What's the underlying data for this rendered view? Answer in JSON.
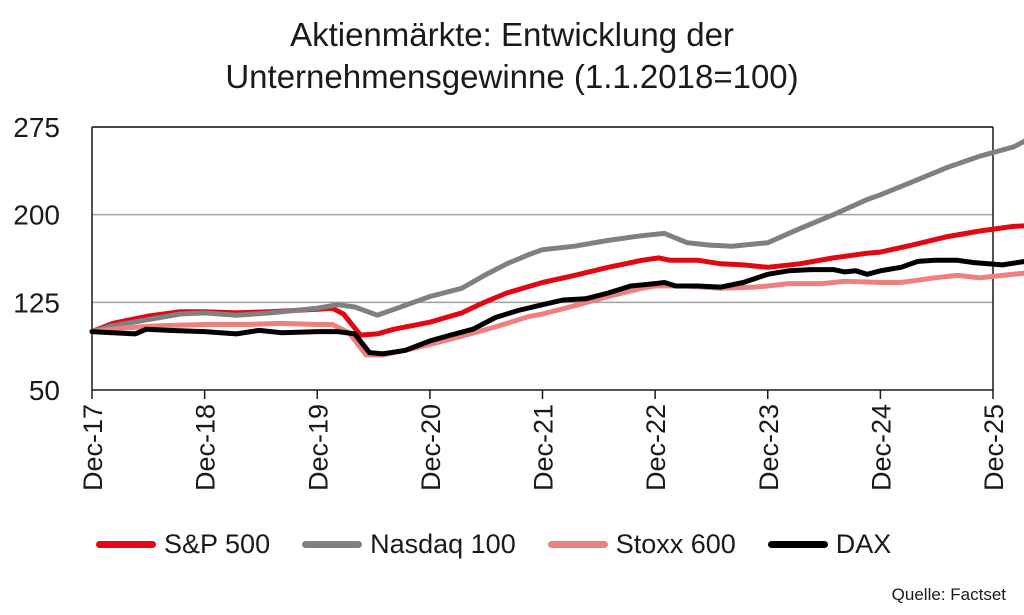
{
  "title_line1": "Aktienmärkte: Entwicklung der",
  "title_line2": "Unternehmensgewinne (1.1.2018=100)",
  "source": "Quelle: Factset",
  "chart_data": {
    "type": "line",
    "title": "Aktienmärkte: Entwicklung der Unternehmensgewinne (1.1.2018=100)",
    "xlabel": "",
    "ylabel": "",
    "ylim": [
      50,
      275
    ],
    "yticks": [
      50,
      125,
      200,
      275
    ],
    "xlim": [
      2017.917,
      2025.917
    ],
    "xticks": [
      {
        "x": 2017.917,
        "label": "Dec-17"
      },
      {
        "x": 2018.917,
        "label": "Dec-18"
      },
      {
        "x": 2019.917,
        "label": "Dec-19"
      },
      {
        "x": 2020.917,
        "label": "Dec-20"
      },
      {
        "x": 2021.917,
        "label": "Dec-21"
      },
      {
        "x": 2022.917,
        "label": "Dec-22"
      },
      {
        "x": 2023.917,
        "label": "Dec-23"
      },
      {
        "x": 2024.917,
        "label": "Dec-24"
      },
      {
        "x": 2025.917,
        "label": "Dec-25"
      }
    ],
    "grid": "horizontal",
    "legend_position": "bottom",
    "series": [
      {
        "name": "S&P 500",
        "color": "#e30613",
        "points": [
          [
            2017.917,
            100
          ],
          [
            2018.1,
            107
          ],
          [
            2018.4,
            113
          ],
          [
            2018.7,
            117
          ],
          [
            2018.917,
            117
          ],
          [
            2019.2,
            116
          ],
          [
            2019.5,
            117
          ],
          [
            2019.917,
            119
          ],
          [
            2020.05,
            120
          ],
          [
            2020.15,
            115
          ],
          [
            2020.3,
            97
          ],
          [
            2020.45,
            98
          ],
          [
            2020.6,
            102
          ],
          [
            2020.917,
            108
          ],
          [
            2021.2,
            116
          ],
          [
            2021.4,
            125
          ],
          [
            2021.6,
            133
          ],
          [
            2021.917,
            142
          ],
          [
            2022.2,
            148
          ],
          [
            2022.5,
            155
          ],
          [
            2022.8,
            161
          ],
          [
            2022.95,
            163
          ],
          [
            2023.05,
            161
          ],
          [
            2023.3,
            161
          ],
          [
            2023.5,
            158
          ],
          [
            2023.7,
            157
          ],
          [
            2023.917,
            155
          ],
          [
            2024.2,
            158
          ],
          [
            2024.5,
            163
          ],
          [
            2024.8,
            167
          ],
          [
            2024.917,
            168
          ],
          [
            2025.2,
            174
          ],
          [
            2025.5,
            181
          ],
          [
            2025.8,
            186
          ],
          [
            2026.1,
            190
          ],
          [
            2026.3,
            191
          ],
          [
            2026.45,
            189
          ]
        ]
      },
      {
        "name": "Nasdaq 100",
        "color": "#808080",
        "points": [
          [
            2017.917,
            100
          ],
          [
            2018.1,
            105
          ],
          [
            2018.4,
            110
          ],
          [
            2018.7,
            115
          ],
          [
            2018.917,
            116
          ],
          [
            2019.2,
            114
          ],
          [
            2019.5,
            116
          ],
          [
            2019.917,
            120
          ],
          [
            2020.1,
            123
          ],
          [
            2020.25,
            121
          ],
          [
            2020.45,
            114
          ],
          [
            2020.6,
            119
          ],
          [
            2020.8,
            126
          ],
          [
            2020.917,
            130
          ],
          [
            2021.2,
            137
          ],
          [
            2021.4,
            148
          ],
          [
            2021.6,
            158
          ],
          [
            2021.8,
            166
          ],
          [
            2021.917,
            170
          ],
          [
            2022.2,
            173
          ],
          [
            2022.5,
            178
          ],
          [
            2022.8,
            182
          ],
          [
            2023.0,
            184
          ],
          [
            2023.2,
            176
          ],
          [
            2023.4,
            174
          ],
          [
            2023.6,
            173
          ],
          [
            2023.917,
            176
          ],
          [
            2024.2,
            188
          ],
          [
            2024.5,
            200
          ],
          [
            2024.8,
            213
          ],
          [
            2024.917,
            217
          ],
          [
            2025.2,
            228
          ],
          [
            2025.5,
            240
          ],
          [
            2025.8,
            250
          ],
          [
            2026.1,
            258
          ],
          [
            2026.3,
            268
          ],
          [
            2026.45,
            271
          ]
        ]
      },
      {
        "name": "Stoxx 600",
        "color": "#f08080",
        "points": [
          [
            2017.917,
            100
          ],
          [
            2018.2,
            103
          ],
          [
            2018.5,
            105
          ],
          [
            2018.917,
            106
          ],
          [
            2019.3,
            106
          ],
          [
            2019.6,
            107
          ],
          [
            2019.917,
            106
          ],
          [
            2020.05,
            106
          ],
          [
            2020.2,
            99
          ],
          [
            2020.35,
            80
          ],
          [
            2020.5,
            80
          ],
          [
            2020.7,
            84
          ],
          [
            2020.917,
            89
          ],
          [
            2021.2,
            96
          ],
          [
            2021.5,
            104
          ],
          [
            2021.8,
            113
          ],
          [
            2021.917,
            115
          ],
          [
            2022.2,
            122
          ],
          [
            2022.5,
            130
          ],
          [
            2022.8,
            137
          ],
          [
            2022.917,
            139
          ],
          [
            2023.2,
            139
          ],
          [
            2023.5,
            137
          ],
          [
            2023.8,
            138
          ],
          [
            2023.917,
            139
          ],
          [
            2024.1,
            141
          ],
          [
            2024.4,
            141
          ],
          [
            2024.6,
            143
          ],
          [
            2024.917,
            142
          ],
          [
            2025.1,
            142
          ],
          [
            2025.4,
            146
          ],
          [
            2025.6,
            148
          ],
          [
            2025.8,
            146
          ],
          [
            2026.0,
            148
          ],
          [
            2026.2,
            150
          ],
          [
            2026.35,
            148
          ],
          [
            2026.45,
            144
          ]
        ]
      },
      {
        "name": "DAX",
        "color": "#000000",
        "points": [
          [
            2017.917,
            100
          ],
          [
            2018.1,
            99
          ],
          [
            2018.3,
            98
          ],
          [
            2018.4,
            102
          ],
          [
            2018.6,
            101
          ],
          [
            2018.917,
            100
          ],
          [
            2019.2,
            98
          ],
          [
            2019.4,
            101
          ],
          [
            2019.6,
            99
          ],
          [
            2019.917,
            100
          ],
          [
            2020.1,
            100
          ],
          [
            2020.25,
            98
          ],
          [
            2020.38,
            82
          ],
          [
            2020.5,
            81
          ],
          [
            2020.7,
            84
          ],
          [
            2020.917,
            92
          ],
          [
            2021.1,
            97
          ],
          [
            2021.3,
            102
          ],
          [
            2021.5,
            112
          ],
          [
            2021.7,
            118
          ],
          [
            2021.917,
            123
          ],
          [
            2022.1,
            127
          ],
          [
            2022.3,
            128
          ],
          [
            2022.5,
            133
          ],
          [
            2022.7,
            139
          ],
          [
            2022.917,
            141
          ],
          [
            2023.0,
            142
          ],
          [
            2023.1,
            139
          ],
          [
            2023.3,
            139
          ],
          [
            2023.5,
            138
          ],
          [
            2023.7,
            142
          ],
          [
            2023.917,
            149
          ],
          [
            2024.1,
            152
          ],
          [
            2024.3,
            153
          ],
          [
            2024.5,
            153
          ],
          [
            2024.6,
            151
          ],
          [
            2024.7,
            152
          ],
          [
            2024.8,
            149
          ],
          [
            2024.917,
            152
          ],
          [
            2025.1,
            155
          ],
          [
            2025.25,
            160
          ],
          [
            2025.4,
            161
          ],
          [
            2025.6,
            161
          ],
          [
            2025.75,
            159
          ],
          [
            2026.0,
            157
          ],
          [
            2026.2,
            160
          ],
          [
            2026.35,
            162
          ],
          [
            2026.45,
            160
          ]
        ]
      }
    ]
  }
}
